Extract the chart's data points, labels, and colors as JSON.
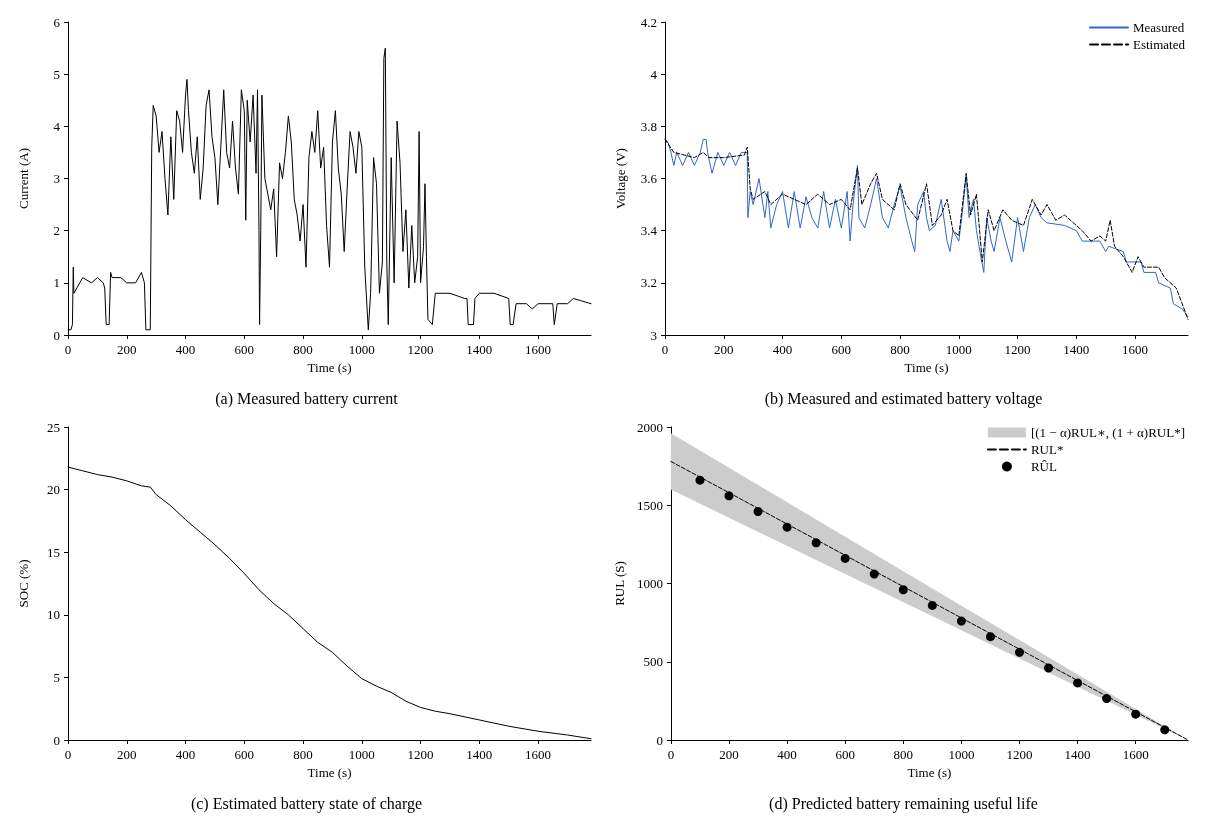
{
  "chart_data": [
    {
      "type": "line",
      "title": "(a) Measured battery current",
      "xlabel": "Time (s)",
      "ylabel": "Current (A)",
      "xlim": [
        0,
        1780
      ],
      "xticks": [
        0,
        200,
        400,
        600,
        800,
        1000,
        1200,
        1400,
        1600
      ],
      "ylim": [
        0,
        6
      ],
      "yticks": [
        0,
        1,
        2,
        3,
        4,
        5,
        6
      ],
      "grid": false,
      "legend": false,
      "marker": "none",
      "series": [
        {
          "color": "#000000",
          "line_style": "solid",
          "x": [
            0,
            10,
            15,
            18,
            20,
            30,
            40,
            50,
            80,
            100,
            120,
            125,
            130,
            140,
            145,
            150,
            180,
            200,
            230,
            250,
            260,
            265,
            280,
            285,
            290,
            300,
            310,
            320,
            330,
            340,
            350,
            360,
            370,
            380,
            390,
            400,
            405,
            410,
            420,
            430,
            440,
            450,
            460,
            470,
            480,
            490,
            500,
            510,
            520,
            530,
            540,
            550,
            560,
            570,
            580,
            590,
            600,
            605,
            610,
            620,
            630,
            640,
            645,
            650,
            652,
            656,
            660,
            670,
            680,
            690,
            700,
            710,
            720,
            730,
            740,
            750,
            760,
            770,
            780,
            790,
            800,
            810,
            820,
            830,
            840,
            850,
            860,
            870,
            880,
            890,
            900,
            910,
            920,
            930,
            940,
            950,
            960,
            970,
            980,
            990,
            1000,
            1010,
            1022,
            1030,
            1040,
            1050,
            1060,
            1070,
            1075,
            1080,
            1085,
            1090,
            1100,
            1110,
            1120,
            1130,
            1140,
            1150,
            1160,
            1170,
            1180,
            1190,
            1195,
            1200,
            1210,
            1215,
            1220,
            1225,
            1240,
            1250,
            1300,
            1350,
            1358,
            1362,
            1380,
            1385,
            1400,
            1450,
            1500,
            1505,
            1515,
            1525,
            1560,
            1580,
            1600,
            1640,
            1650,
            1655,
            1665,
            1700,
            1720,
            1780
          ],
          "values": [
            0.1,
            0.1,
            0.2,
            1.3,
            0.8,
            0.9,
            1.0,
            1.1,
            1.0,
            1.1,
            1.0,
            0.9,
            0.2,
            0.2,
            1.2,
            1.1,
            1.1,
            1.0,
            1.0,
            1.2,
            1.0,
            0.1,
            0.1,
            3.6,
            4.4,
            4.2,
            3.5,
            3.9,
            3.0,
            2.3,
            3.8,
            2.6,
            4.3,
            4.1,
            3.5,
            4.6,
            4.9,
            4.3,
            3.5,
            3.1,
            3.8,
            2.6,
            3.2,
            4.4,
            4.7,
            3.8,
            3.4,
            2.5,
            3.6,
            4.7,
            3.5,
            3.2,
            4.1,
            3.2,
            2.7,
            4.7,
            4.3,
            2.2,
            4.5,
            3.7,
            4.6,
            3.1,
            4.7,
            2.0,
            0.2,
            2.0,
            4.6,
            3.0,
            2.7,
            2.4,
            2.8,
            1.5,
            3.3,
            3.0,
            3.5,
            4.2,
            3.7,
            2.6,
            2.3,
            1.8,
            2.5,
            1.3,
            3.4,
            3.9,
            3.5,
            4.3,
            3.2,
            3.6,
            2.1,
            1.3,
            3.7,
            4.3,
            3.2,
            2.7,
            1.6,
            2.8,
            3.9,
            3.6,
            3.1,
            3.9,
            3.6,
            1.3,
            0.1,
            0.8,
            3.4,
            2.9,
            0.8,
            1.4,
            5.3,
            5.5,
            1.4,
            0.2,
            3.4,
            1.0,
            4.1,
            3.3,
            1.6,
            2.4,
            0.9,
            2.1,
            1.0,
            1.5,
            3.9,
            1.0,
            1.7,
            2.9,
            1.5,
            0.3,
            0.2,
            0.8,
            0.8,
            0.7,
            0.7,
            0.2,
            0.2,
            0.7,
            0.8,
            0.8,
            0.7,
            0.2,
            0.2,
            0.6,
            0.6,
            0.5,
            0.6,
            0.6,
            0.6,
            0.2,
            0.6,
            0.6,
            0.7,
            0.6
          ]
        }
      ]
    },
    {
      "type": "line",
      "title": "(b) Measured and estimated battery voltage",
      "xlabel": "Time (s)",
      "ylabel": "Voltage (V)",
      "xlim": [
        0,
        1780
      ],
      "xticks": [
        0,
        200,
        400,
        600,
        800,
        1000,
        1200,
        1400,
        1600
      ],
      "ylim": [
        3,
        4.2
      ],
      "yticks": [
        3,
        3.2,
        3.4,
        3.6,
        3.8,
        4,
        4.2
      ],
      "grid": false,
      "legend": "top right",
      "marker": "none",
      "series": [
        {
          "name": "Measured",
          "color": "#3366cc",
          "line_style": "solid",
          "x": [
            0,
            10,
            20,
            30,
            40,
            60,
            80,
            100,
            120,
            130,
            140,
            145,
            160,
            180,
            200,
            220,
            240,
            260,
            280,
            282,
            290,
            300,
            320,
            340,
            350,
            360,
            380,
            400,
            420,
            440,
            460,
            480,
            500,
            520,
            540,
            560,
            580,
            600,
            620,
            630,
            640,
            655,
            660,
            680,
            700,
            720,
            740,
            760,
            780,
            800,
            820,
            840,
            850,
            860,
            880,
            890,
            900,
            920,
            940,
            960,
            970,
            980,
            1000,
            1010,
            1025,
            1035,
            1050,
            1060,
            1075,
            1085,
            1095,
            1110,
            1120,
            1140,
            1160,
            1180,
            1200,
            1220,
            1240,
            1260,
            1280,
            1300,
            1360,
            1400,
            1420,
            1480,
            1500,
            1510,
            1560,
            1570,
            1620,
            1630,
            1670,
            1680,
            1720,
            1730,
            1760,
            1780
          ],
          "values": [
            3.75,
            3.74,
            3.7,
            3.65,
            3.7,
            3.65,
            3.7,
            3.65,
            3.7,
            3.75,
            3.75,
            3.7,
            3.62,
            3.7,
            3.65,
            3.7,
            3.65,
            3.7,
            3.7,
            3.45,
            3.55,
            3.5,
            3.6,
            3.45,
            3.55,
            3.41,
            3.5,
            3.55,
            3.41,
            3.55,
            3.41,
            3.53,
            3.45,
            3.41,
            3.55,
            3.41,
            3.52,
            3.41,
            3.55,
            3.36,
            3.5,
            3.65,
            3.45,
            3.41,
            3.5,
            3.6,
            3.45,
            3.41,
            3.5,
            3.57,
            3.45,
            3.36,
            3.32,
            3.5,
            3.55,
            3.45,
            3.4,
            3.42,
            3.52,
            3.36,
            3.32,
            3.4,
            3.36,
            3.45,
            3.61,
            3.45,
            3.52,
            3.4,
            3.3,
            3.24,
            3.45,
            3.36,
            3.32,
            3.45,
            3.36,
            3.28,
            3.45,
            3.32,
            3.45,
            3.5,
            3.45,
            3.43,
            3.42,
            3.4,
            3.36,
            3.36,
            3.32,
            3.34,
            3.32,
            3.28,
            3.28,
            3.24,
            3.24,
            3.2,
            3.18,
            3.12,
            3.1,
            3.07
          ]
        },
        {
          "name": "Estimated",
          "color": "#000000",
          "line_style": "dashed",
          "x": [
            0,
            30,
            100,
            130,
            150,
            200,
            270,
            280,
            290,
            300,
            340,
            360,
            400,
            440,
            480,
            520,
            560,
            600,
            630,
            655,
            670,
            700,
            720,
            740,
            780,
            800,
            820,
            860,
            890,
            910,
            940,
            960,
            980,
            1000,
            1025,
            1040,
            1060,
            1080,
            1100,
            1120,
            1150,
            1180,
            1220,
            1250,
            1280,
            1300,
            1330,
            1360,
            1400,
            1420,
            1450,
            1480,
            1500,
            1515,
            1530,
            1560,
            1590,
            1610,
            1630,
            1680,
            1700,
            1740,
            1780
          ],
          "values": [
            3.75,
            3.7,
            3.68,
            3.7,
            3.68,
            3.68,
            3.69,
            3.72,
            3.56,
            3.52,
            3.55,
            3.5,
            3.54,
            3.52,
            3.5,
            3.54,
            3.5,
            3.52,
            3.48,
            3.64,
            3.5,
            3.58,
            3.62,
            3.52,
            3.48,
            3.58,
            3.5,
            3.44,
            3.58,
            3.42,
            3.46,
            3.52,
            3.4,
            3.38,
            3.62,
            3.46,
            3.54,
            3.28,
            3.48,
            3.4,
            3.48,
            3.44,
            3.42,
            3.52,
            3.46,
            3.5,
            3.44,
            3.46,
            3.42,
            3.4,
            3.36,
            3.38,
            3.36,
            3.44,
            3.34,
            3.3,
            3.24,
            3.3,
            3.26,
            3.26,
            3.22,
            3.18,
            3.06
          ]
        }
      ]
    },
    {
      "type": "line",
      "title": "(c) Estimated battery state of charge",
      "xlabel": "Time (s)",
      "ylabel": "SOC (%)",
      "xlim": [
        0,
        1780
      ],
      "xticks": [
        0,
        200,
        400,
        600,
        800,
        1000,
        1200,
        1400,
        1600
      ],
      "ylim": [
        0,
        25
      ],
      "yticks": [
        0,
        5,
        10,
        15,
        20,
        25
      ],
      "grid": false,
      "legend": false,
      "marker": "none",
      "series": [
        {
          "color": "#000000",
          "line_style": "solid",
          "x": [
            0,
            50,
            100,
            150,
            200,
            250,
            280,
            300,
            350,
            400,
            450,
            500,
            550,
            600,
            650,
            700,
            750,
            800,
            850,
            900,
            950,
            1000,
            1050,
            1100,
            1150,
            1200,
            1250,
            1300,
            1400,
            1500,
            1600,
            1700,
            1780
          ],
          "values": [
            21.8,
            21.5,
            21.2,
            21.0,
            20.7,
            20.3,
            20.2,
            19.6,
            18.7,
            17.6,
            16.6,
            15.6,
            14.5,
            13.3,
            12.0,
            10.9,
            10.0,
            8.9,
            7.8,
            7.0,
            5.9,
            4.9,
            4.3,
            3.8,
            3.1,
            2.6,
            2.3,
            2.1,
            1.6,
            1.1,
            0.7,
            0.4,
            0.1
          ]
        }
      ]
    },
    {
      "type": "line",
      "title": "(d) Predicted battery remaining useful life",
      "xlabel": "Time (s)",
      "ylabel": "RUL (S)",
      "xlim": [
        0,
        1780
      ],
      "xticks": [
        0,
        200,
        400,
        600,
        800,
        1000,
        1200,
        1400,
        1600
      ],
      "ylim": [
        0,
        2000
      ],
      "yticks": [
        0,
        500,
        1000,
        1500,
        2000
      ],
      "grid": false,
      "legend": "top right",
      "series": [
        {
          "type": "area",
          "name": "[(1 − α)RUL∗, (1 + α)RUL*]",
          "color": "#cccccc"
        },
        {
          "type": "line",
          "name": "RUL*",
          "color": "#000000",
          "line_style": "dashed",
          "marker": "none",
          "x": [
            0,
            445,
            890,
            1335,
            1780
          ],
          "values": [
            1780,
            1335,
            890,
            445,
            0
          ],
          "lower": [
            1600,
            1200,
            800,
            400,
            0
          ],
          "upper": [
            1960,
            1470,
            980,
            490,
            0
          ]
        },
        {
          "type": "scatter",
          "name": "RÛL",
          "color": "#000000",
          "marker": "circle",
          "x": [
            100,
            200,
            300,
            400,
            500,
            600,
            700,
            800,
            900,
            1000,
            1100,
            1200,
            1300,
            1400,
            1500,
            1600,
            1700
          ],
          "values": [
            1660,
            1560,
            1460,
            1360,
            1260,
            1160,
            1060,
            960,
            860,
            760,
            660,
            560,
            460,
            365,
            265,
            165,
            65
          ]
        }
      ]
    }
  ]
}
